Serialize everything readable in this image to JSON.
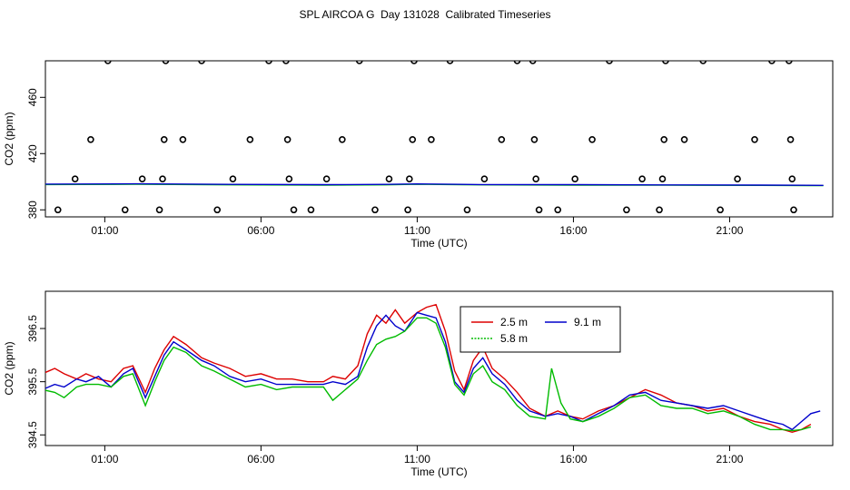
{
  "title": "SPL AIRCOA G  Day 131028  Calibrated Timeseries",
  "chart_data": [
    {
      "type": "scatter",
      "xlabel": "Time (UTC)",
      "ylabel": "CO2 (ppm)",
      "x_ticks": [
        {
          "h": 1,
          "label": "01:00"
        },
        {
          "h": 6,
          "label": "06:00"
        },
        {
          "h": 11,
          "label": "11:00"
        },
        {
          "h": 16,
          "label": "16:00"
        },
        {
          "h": 21,
          "label": "21:00"
        }
      ],
      "y_ticks": [
        380,
        420,
        460
      ],
      "xlim": [
        -0.9,
        24.3
      ],
      "ylim": [
        375,
        486
      ],
      "grid": false,
      "points": [
        [
          -0.5,
          380
        ],
        [
          0.05,
          402
        ],
        [
          0.55,
          430
        ],
        [
          1.1,
          486
        ],
        [
          1.65,
          380
        ],
        [
          2.2,
          402
        ],
        [
          2.75,
          380
        ],
        [
          2.85,
          402
        ],
        [
          2.9,
          430
        ],
        [
          2.95,
          486
        ],
        [
          3.5,
          430
        ],
        [
          4.1,
          486
        ],
        [
          4.6,
          380
        ],
        [
          5.1,
          402
        ],
        [
          5.65,
          430
        ],
        [
          6.25,
          486
        ],
        [
          6.8,
          486
        ],
        [
          6.85,
          430
        ],
        [
          6.9,
          402
        ],
        [
          7.05,
          380
        ],
        [
          7.6,
          380
        ],
        [
          8.1,
          402
        ],
        [
          8.6,
          430
        ],
        [
          9.15,
          486
        ],
        [
          9.65,
          380
        ],
        [
          10.1,
          402
        ],
        [
          10.7,
          380
        ],
        [
          10.75,
          402
        ],
        [
          10.85,
          430
        ],
        [
          10.9,
          486
        ],
        [
          11.45,
          430
        ],
        [
          12.05,
          486
        ],
        [
          12.6,
          380
        ],
        [
          13.15,
          402
        ],
        [
          13.7,
          430
        ],
        [
          14.2,
          486
        ],
        [
          14.7,
          486
        ],
        [
          14.75,
          430
        ],
        [
          14.8,
          402
        ],
        [
          14.9,
          380
        ],
        [
          15.5,
          380
        ],
        [
          16.05,
          402
        ],
        [
          16.6,
          430
        ],
        [
          17.15,
          486
        ],
        [
          17.7,
          380
        ],
        [
          18.2,
          402
        ],
        [
          18.75,
          380
        ],
        [
          18.85,
          402
        ],
        [
          18.9,
          430
        ],
        [
          18.95,
          486
        ],
        [
          19.55,
          430
        ],
        [
          20.15,
          486
        ],
        [
          20.7,
          380
        ],
        [
          21.25,
          402
        ],
        [
          21.8,
          430
        ],
        [
          22.35,
          486
        ],
        [
          22.9,
          486
        ],
        [
          22.95,
          430
        ],
        [
          23.0,
          402
        ],
        [
          23.05,
          380
        ]
      ],
      "series": [
        {
          "name": "",
          "color": "#00cc00",
          "values": [
            [
              -1,
              398
            ],
            [
              2,
              398.2
            ],
            [
              5,
              397.8
            ],
            [
              8,
              397.6
            ],
            [
              10,
              397.8
            ],
            [
              11,
              398.2
            ],
            [
              13,
              397.8
            ],
            [
              16,
              397.6
            ],
            [
              19,
              397.5
            ],
            [
              22,
              397.4
            ],
            [
              24,
              397.2
            ]
          ]
        },
        {
          "name": "",
          "color": "#0000cc",
          "values": [
            [
              -1,
              398.3
            ],
            [
              2,
              398.5
            ],
            [
              5,
              398.1
            ],
            [
              8,
              397.9
            ],
            [
              10,
              398.1
            ],
            [
              11,
              398.4
            ],
            [
              13,
              398
            ],
            [
              16,
              397.9
            ],
            [
              19,
              397.7
            ],
            [
              22,
              397.6
            ],
            [
              24,
              397.4
            ]
          ]
        }
      ]
    },
    {
      "type": "line",
      "xlabel": "Time (UTC)",
      "ylabel": "CO2 (ppm)",
      "x_ticks": [
        {
          "h": 1,
          "label": "01:00"
        },
        {
          "h": 6,
          "label": "06:00"
        },
        {
          "h": 11,
          "label": "11:00"
        },
        {
          "h": 16,
          "label": "16:00"
        },
        {
          "h": 21,
          "label": "21:00"
        }
      ],
      "y_ticks": [
        "394.5",
        "395.5",
        "396.5"
      ],
      "xlim": [
        -0.9,
        24.3
      ],
      "ylim": [
        394.3,
        397.2
      ],
      "grid": false,
      "legend_placement": "top-center",
      "series": [
        {
          "name": "2.5 m",
          "color": "#dd0000",
          "values": [
            [
              -1,
              395.65
            ],
            [
              -0.6,
              395.75
            ],
            [
              -0.3,
              395.65
            ],
            [
              0.1,
              395.55
            ],
            [
              0.4,
              395.65
            ],
            [
              0.8,
              395.55
            ],
            [
              1.2,
              395.5
            ],
            [
              1.6,
              395.75
            ],
            [
              1.9,
              395.8
            ],
            [
              2.3,
              395.3
            ],
            [
              2.6,
              395.75
            ],
            [
              2.9,
              396.1
            ],
            [
              3.2,
              396.35
            ],
            [
              3.6,
              396.2
            ],
            [
              4.1,
              395.95
            ],
            [
              4.5,
              395.85
            ],
            [
              5,
              395.75
            ],
            [
              5.5,
              395.6
            ],
            [
              6,
              395.65
            ],
            [
              6.5,
              395.55
            ],
            [
              7,
              395.55
            ],
            [
              7.5,
              395.5
            ],
            [
              8,
              395.5
            ],
            [
              8.3,
              395.6
            ],
            [
              8.7,
              395.55
            ],
            [
              9.1,
              395.8
            ],
            [
              9.4,
              396.4
            ],
            [
              9.7,
              396.75
            ],
            [
              10,
              396.6
            ],
            [
              10.3,
              396.85
            ],
            [
              10.6,
              396.6
            ],
            [
              11,
              396.8
            ],
            [
              11.3,
              396.9
            ],
            [
              11.6,
              396.95
            ],
            [
              11.9,
              396.45
            ],
            [
              12.2,
              395.7
            ],
            [
              12.5,
              395.35
            ],
            [
              12.8,
              395.9
            ],
            [
              13.1,
              396.15
            ],
            [
              13.4,
              395.75
            ],
            [
              13.8,
              395.55
            ],
            [
              14.2,
              395.3
            ],
            [
              14.6,
              395.0
            ],
            [
              15.1,
              394.85
            ],
            [
              15.5,
              394.95
            ],
            [
              15.9,
              394.85
            ],
            [
              16.3,
              394.8
            ],
            [
              16.8,
              394.95
            ],
            [
              17.3,
              395.05
            ],
            [
              17.8,
              395.2
            ],
            [
              18.3,
              395.35
            ],
            [
              18.8,
              395.25
            ],
            [
              19.3,
              395.1
            ],
            [
              19.8,
              395.05
            ],
            [
              20.3,
              394.95
            ],
            [
              20.8,
              395.0
            ],
            [
              21.3,
              394.85
            ],
            [
              21.8,
              394.75
            ],
            [
              22.3,
              394.7
            ],
            [
              22.7,
              394.6
            ],
            [
              23,
              394.55
            ],
            [
              23.3,
              394.6
            ],
            [
              23.6,
              394.7
            ]
          ]
        },
        {
          "name": "9.1 m",
          "color": "#0000cc",
          "values": [
            [
              -1,
              395.35
            ],
            [
              -0.6,
              395.45
            ],
            [
              -0.3,
              395.4
            ],
            [
              0.1,
              395.55
            ],
            [
              0.4,
              395.5
            ],
            [
              0.8,
              395.6
            ],
            [
              1.2,
              395.4
            ],
            [
              1.6,
              395.65
            ],
            [
              1.9,
              395.75
            ],
            [
              2.3,
              395.2
            ],
            [
              2.6,
              395.6
            ],
            [
              2.9,
              396.0
            ],
            [
              3.2,
              396.25
            ],
            [
              3.6,
              396.1
            ],
            [
              4.1,
              395.9
            ],
            [
              4.5,
              395.8
            ],
            [
              5,
              395.6
            ],
            [
              5.5,
              395.5
            ],
            [
              6,
              395.55
            ],
            [
              6.5,
              395.45
            ],
            [
              7,
              395.45
            ],
            [
              7.5,
              395.45
            ],
            [
              8,
              395.45
            ],
            [
              8.3,
              395.5
            ],
            [
              8.7,
              395.45
            ],
            [
              9.1,
              395.6
            ],
            [
              9.4,
              396.15
            ],
            [
              9.7,
              396.55
            ],
            [
              10,
              396.75
            ],
            [
              10.3,
              396.55
            ],
            [
              10.6,
              396.45
            ],
            [
              11,
              396.8
            ],
            [
              11.3,
              396.75
            ],
            [
              11.6,
              396.7
            ],
            [
              11.9,
              396.25
            ],
            [
              12.2,
              395.5
            ],
            [
              12.5,
              395.3
            ],
            [
              12.8,
              395.75
            ],
            [
              13.1,
              395.95
            ],
            [
              13.4,
              395.65
            ],
            [
              13.8,
              395.45
            ],
            [
              14.2,
              395.15
            ],
            [
              14.6,
              394.95
            ],
            [
              15.1,
              394.85
            ],
            [
              15.5,
              394.9
            ],
            [
              15.9,
              394.85
            ],
            [
              16.3,
              394.75
            ],
            [
              16.8,
              394.9
            ],
            [
              17.3,
              395.05
            ],
            [
              17.8,
              395.25
            ],
            [
              18.3,
              395.3
            ],
            [
              18.8,
              395.15
            ],
            [
              19.3,
              395.1
            ],
            [
              19.8,
              395.05
            ],
            [
              20.3,
              395.0
            ],
            [
              20.8,
              395.05
            ],
            [
              21.3,
              394.95
            ],
            [
              21.8,
              394.85
            ],
            [
              22.3,
              394.75
            ],
            [
              22.7,
              394.7
            ],
            [
              23,
              394.6
            ],
            [
              23.3,
              394.75
            ],
            [
              23.6,
              394.9
            ],
            [
              23.9,
              394.95
            ]
          ]
        },
        {
          "name": "5.8 m",
          "color": "#00bb00",
          "values": [
            [
              -1,
              395.35
            ],
            [
              -0.6,
              395.3
            ],
            [
              -0.3,
              395.2
            ],
            [
              0.1,
              395.4
            ],
            [
              0.4,
              395.45
            ],
            [
              0.8,
              395.45
            ],
            [
              1.2,
              395.4
            ],
            [
              1.6,
              395.6
            ],
            [
              1.9,
              395.65
            ],
            [
              2.3,
              395.05
            ],
            [
              2.6,
              395.5
            ],
            [
              2.9,
              395.9
            ],
            [
              3.2,
              396.15
            ],
            [
              3.6,
              396.05
            ],
            [
              4.1,
              395.8
            ],
            [
              4.5,
              395.7
            ],
            [
              5,
              395.55
            ],
            [
              5.5,
              395.4
            ],
            [
              6,
              395.45
            ],
            [
              6.5,
              395.35
            ],
            [
              7,
              395.4
            ],
            [
              7.5,
              395.4
            ],
            [
              8,
              395.4
            ],
            [
              8.3,
              395.15
            ],
            [
              8.7,
              395.35
            ],
            [
              9.1,
              395.55
            ],
            [
              9.4,
              395.9
            ],
            [
              9.7,
              396.2
            ],
            [
              10,
              396.3
            ],
            [
              10.3,
              396.35
            ],
            [
              10.6,
              396.45
            ],
            [
              11,
              396.7
            ],
            [
              11.3,
              396.7
            ],
            [
              11.6,
              396.6
            ],
            [
              11.9,
              396.15
            ],
            [
              12.2,
              395.45
            ],
            [
              12.5,
              395.25
            ],
            [
              12.8,
              395.65
            ],
            [
              13.1,
              395.8
            ],
            [
              13.4,
              395.5
            ],
            [
              13.8,
              395.35
            ],
            [
              14.2,
              395.05
            ],
            [
              14.6,
              394.85
            ],
            [
              15.1,
              394.8
            ],
            [
              15.3,
              395.75
            ],
            [
              15.6,
              395.1
            ],
            [
              15.9,
              394.8
            ],
            [
              16.3,
              394.75
            ],
            [
              16.8,
              394.85
            ],
            [
              17.3,
              395.0
            ],
            [
              17.8,
              395.2
            ],
            [
              18.3,
              395.25
            ],
            [
              18.8,
              395.05
            ],
            [
              19.3,
              395.0
            ],
            [
              19.8,
              395.0
            ],
            [
              20.3,
              394.9
            ],
            [
              20.8,
              394.95
            ],
            [
              21.3,
              394.85
            ],
            [
              21.8,
              394.7
            ],
            [
              22.3,
              394.6
            ],
            [
              22.7,
              394.6
            ],
            [
              23,
              394.58
            ],
            [
              23.3,
              394.6
            ],
            [
              23.6,
              394.65
            ]
          ]
        }
      ]
    }
  ]
}
